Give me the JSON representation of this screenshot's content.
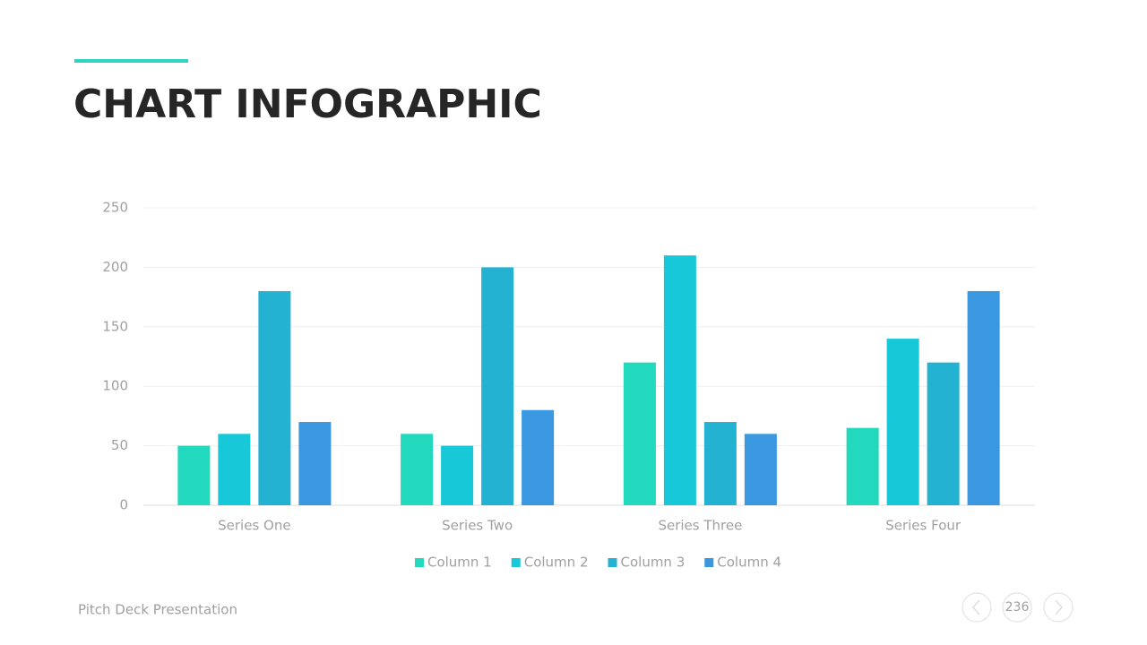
{
  "chart_data": {
    "type": "bar",
    "title": "CHART INFOGRAPHIC",
    "categories": [
      "Series One",
      "Series Two",
      "Series Three",
      "Series Four"
    ],
    "series": [
      {
        "name": "Column 1",
        "color": "#22d8bd",
        "values": [
          50,
          60,
          120,
          65
        ]
      },
      {
        "name": "Column 2",
        "color": "#16c8d8",
        "values": [
          60,
          50,
          210,
          140
        ]
      },
      {
        "name": "Column 3",
        "color": "#24b2d2",
        "values": [
          180,
          200,
          70,
          120
        ]
      },
      {
        "name": "Column 4",
        "color": "#3a98e0",
        "values": [
          70,
          80,
          60,
          180
        ]
      }
    ],
    "ylim": [
      0,
      250
    ],
    "yticks": [
      0,
      50,
      100,
      150,
      200,
      250
    ],
    "grid": true,
    "legend": "bottom"
  },
  "footer": {
    "text": "Pitch Deck Presentation",
    "page_number": 236
  }
}
